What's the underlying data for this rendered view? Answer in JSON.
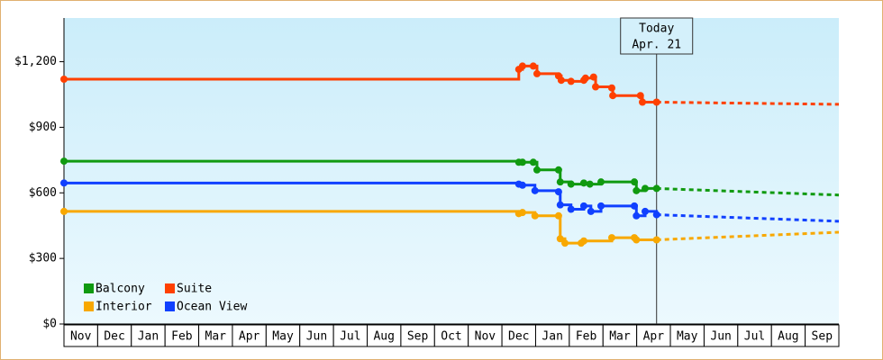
{
  "chart_data": {
    "type": "step",
    "categories": [
      "Nov",
      "Dec",
      "Jan",
      "Feb",
      "Mar",
      "Apr",
      "May",
      "Jun",
      "Jul",
      "Aug",
      "Sep",
      "Oct",
      "Nov",
      "Dec",
      "Jan",
      "Feb",
      "Mar",
      "Apr",
      "May",
      "Jun",
      "Jul",
      "Aug",
      "Sep"
    ],
    "xlim": [
      0,
      23
    ],
    "ylim": [
      0,
      1400
    ],
    "yticks": [
      {
        "value": 0,
        "label": "$0"
      },
      {
        "value": 300,
        "label": "$300"
      },
      {
        "value": 600,
        "label": "$600"
      },
      {
        "value": 900,
        "label": "$900"
      },
      {
        "value": 1200,
        "label": "$1,200"
      }
    ],
    "today": {
      "x": 17.59,
      "label": "Today",
      "date": "Apr. 21"
    },
    "legend": "lower left",
    "series": [
      {
        "name": "Balcony",
        "color": "#109a10",
        "x": [
          0,
          13.5,
          13.61,
          13.93,
          14.04,
          14.68,
          14.73,
          15.05,
          15.43,
          15.61,
          15.94,
          16.93,
          16.99,
          17.25,
          17.59
        ],
        "values": [
          745,
          740,
          740,
          740,
          705,
          705,
          650,
          640,
          645,
          640,
          650,
          650,
          610,
          620,
          620
        ],
        "forecast_x": [
          17.59,
          23
        ],
        "forecast_values": [
          620,
          590
        ]
      },
      {
        "name": "Suite",
        "color": "#ff4000",
        "x": [
          0,
          13.5,
          13.61,
          13.93,
          14.04,
          14.68,
          14.76,
          15.05,
          15.43,
          15.48,
          15.72,
          15.78,
          16.26,
          16.29,
          17.11,
          17.17,
          17.59
        ],
        "values": [
          1120,
          1165,
          1180,
          1180,
          1145,
          1135,
          1115,
          1110,
          1115,
          1125,
          1130,
          1085,
          1080,
          1045,
          1045,
          1015,
          1015
        ],
        "forecast_x": [
          17.59,
          23
        ],
        "forecast_values": [
          1015,
          1005
        ]
      },
      {
        "name": "Interior",
        "color": "#f8a800",
        "x": [
          0,
          13.5,
          13.61,
          13.98,
          14.68,
          14.73,
          14.87,
          15.35,
          15.43,
          16.26,
          16.93,
          16.99,
          17.59
        ],
        "values": [
          515,
          505,
          510,
          495,
          495,
          390,
          370,
          370,
          380,
          395,
          395,
          385,
          385
        ],
        "forecast_x": [
          17.59,
          23
        ],
        "forecast_values": [
          385,
          420
        ]
      },
      {
        "name": "Ocean View",
        "color": "#1040ff",
        "x": [
          0,
          13.5,
          13.61,
          13.98,
          14.68,
          14.73,
          15.05,
          15.43,
          15.64,
          15.94,
          16.93,
          16.99,
          17.25,
          17.59
        ],
        "values": [
          645,
          640,
          635,
          610,
          605,
          545,
          525,
          540,
          515,
          540,
          540,
          495,
          515,
          500
        ],
        "forecast_x": [
          17.59,
          23
        ],
        "forecast_values": [
          500,
          470
        ]
      }
    ]
  }
}
